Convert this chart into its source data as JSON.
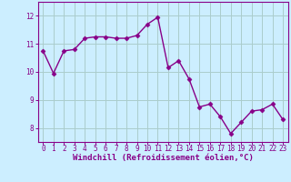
{
  "x": [
    0,
    1,
    2,
    3,
    4,
    5,
    6,
    7,
    8,
    9,
    10,
    11,
    12,
    13,
    14,
    15,
    16,
    17,
    18,
    19,
    20,
    21,
    22,
    23
  ],
  "y": [
    10.75,
    9.95,
    10.75,
    10.8,
    11.2,
    11.25,
    11.25,
    11.2,
    11.2,
    11.3,
    11.7,
    11.95,
    10.15,
    10.4,
    9.75,
    8.75,
    8.85,
    8.4,
    7.8,
    8.2,
    8.6,
    8.65,
    8.85,
    8.3
  ],
  "line_color": "#880088",
  "bg_color": "#cceeff",
  "grid_color": "#aacccc",
  "xlabel": "Windchill (Refroidissement éolien,°C)",
  "ylim": [
    7.5,
    12.5
  ],
  "xlim": [
    -0.5,
    23.5
  ],
  "yticks": [
    8,
    9,
    10,
    11,
    12
  ],
  "xticks": [
    0,
    1,
    2,
    3,
    4,
    5,
    6,
    7,
    8,
    9,
    10,
    11,
    12,
    13,
    14,
    15,
    16,
    17,
    18,
    19,
    20,
    21,
    22,
    23
  ],
  "marker": "D",
  "markersize": 2.5,
  "linewidth": 1.0,
  "label_fontsize": 6.5,
  "tick_fontsize": 5.5
}
